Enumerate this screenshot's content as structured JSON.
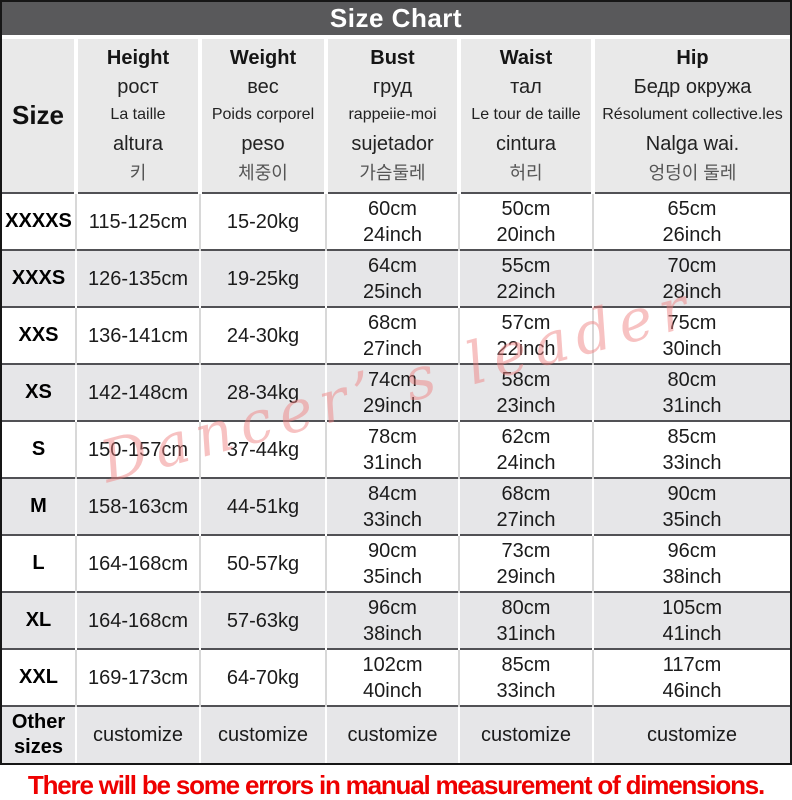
{
  "title": "Size Chart",
  "watermark": "Dancer’ s leader",
  "footer_note": "There will be some errors in manual measurement of dimensions.",
  "colors": {
    "title_bar": "#59595b",
    "header_bg": "#e9e9e9",
    "row_alt_bg": "#e6e6e8",
    "row_border": "#515155",
    "footer_text": "#ee0000",
    "watermark_pink": "#ee8080"
  },
  "table": {
    "size_header": "Size",
    "columns": [
      {
        "id": "height",
        "labels": [
          "Height",
          "рост",
          "La taille",
          "altura",
          "키"
        ]
      },
      {
        "id": "weight",
        "labels": [
          "Weight",
          "вес",
          "Poids corporel",
          "peso",
          "체중이"
        ]
      },
      {
        "id": "bust",
        "labels": [
          "Bust",
          "груд",
          "rappeiie-moi",
          "sujetador",
          "가슴둘레"
        ]
      },
      {
        "id": "waist",
        "labels": [
          "Waist",
          "тал",
          "Le tour de taille",
          "cintura",
          "허리"
        ]
      },
      {
        "id": "hip",
        "labels": [
          "Hip",
          "Бедр окружа",
          "Résolument collective.les",
          "Nalga wai.",
          "엉덩이 둘레"
        ]
      }
    ],
    "rows": [
      {
        "size": [
          "XXXXS"
        ],
        "height": [
          "115-125cm"
        ],
        "weight": [
          "15-20kg"
        ],
        "bust": [
          "60cm",
          "24inch"
        ],
        "waist": [
          "50cm",
          "20inch"
        ],
        "hip": [
          "65cm",
          "26inch"
        ]
      },
      {
        "size": [
          "XXXS"
        ],
        "height": [
          "126-135cm"
        ],
        "weight": [
          "19-25kg"
        ],
        "bust": [
          "64cm",
          "25inch"
        ],
        "waist": [
          "55cm",
          "22inch"
        ],
        "hip": [
          "70cm",
          "28inch"
        ]
      },
      {
        "size": [
          "XXS"
        ],
        "height": [
          "136-141cm"
        ],
        "weight": [
          "24-30kg"
        ],
        "bust": [
          "68cm",
          "27inch"
        ],
        "waist": [
          "57cm",
          "22inch"
        ],
        "hip": [
          "75cm",
          "30inch"
        ]
      },
      {
        "size": [
          "XS"
        ],
        "height": [
          "142-148cm"
        ],
        "weight": [
          "28-34kg"
        ],
        "bust": [
          "74cm",
          "29inch"
        ],
        "waist": [
          "58cm",
          "23inch"
        ],
        "hip": [
          "80cm",
          "31inch"
        ]
      },
      {
        "size": [
          "S"
        ],
        "height": [
          "150-157cm"
        ],
        "weight": [
          "37-44kg"
        ],
        "bust": [
          "78cm",
          "31inch"
        ],
        "waist": [
          "62cm",
          "24inch"
        ],
        "hip": [
          "85cm",
          "33inch"
        ]
      },
      {
        "size": [
          "M"
        ],
        "height": [
          "158-163cm"
        ],
        "weight": [
          "44-51kg"
        ],
        "bust": [
          "84cm",
          "33inch"
        ],
        "waist": [
          "68cm",
          "27inch"
        ],
        "hip": [
          "90cm",
          "35inch"
        ]
      },
      {
        "size": [
          "L"
        ],
        "height": [
          "164-168cm"
        ],
        "weight": [
          "50-57kg"
        ],
        "bust": [
          "90cm",
          "35inch"
        ],
        "waist": [
          "73cm",
          "29inch"
        ],
        "hip": [
          "96cm",
          "38inch"
        ]
      },
      {
        "size": [
          "XL"
        ],
        "height": [
          "164-168cm"
        ],
        "weight": [
          "57-63kg"
        ],
        "bust": [
          "96cm",
          "38inch"
        ],
        "waist": [
          "80cm",
          "31inch"
        ],
        "hip": [
          "105cm",
          "41inch"
        ]
      },
      {
        "size": [
          "XXL"
        ],
        "height": [
          "169-173cm"
        ],
        "weight": [
          "64-70kg"
        ],
        "bust": [
          "102cm",
          "40inch"
        ],
        "waist": [
          "85cm",
          "33inch"
        ],
        "hip": [
          "117cm",
          "46inch"
        ]
      },
      {
        "size": [
          "Other",
          "sizes"
        ],
        "height": [
          "customize"
        ],
        "weight": [
          "customize"
        ],
        "bust": [
          "customize"
        ],
        "waist": [
          "customize"
        ],
        "hip": [
          "customize"
        ]
      }
    ]
  }
}
